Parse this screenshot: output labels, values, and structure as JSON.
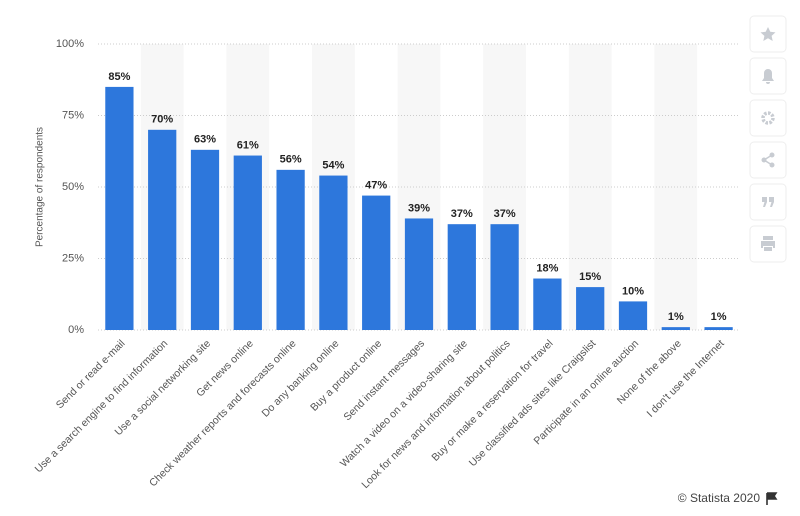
{
  "chart_data": {
    "type": "bar",
    "y_label": "Percentage of respondents",
    "categories": [
      "Send or read e-mail",
      "Use a search engine to find information",
      "Use a social networking site",
      "Get news online",
      "Check weather reports and forecasts online",
      "Do any banking online",
      "Buy a product online",
      "Send instant messages",
      "Watch a video on a video-sharing site",
      "Look for news and information about politics",
      "Buy or make a reservation for travel",
      "Use classified ads sites like Craigslist",
      "Participate in an online auction",
      "None of the above",
      "I don't use the Internet"
    ],
    "values": [
      85,
      70,
      63,
      61,
      56,
      54,
      47,
      39,
      37,
      37,
      18,
      15,
      10,
      1,
      1
    ],
    "value_labels": [
      "85%",
      "70%",
      "63%",
      "61%",
      "56%",
      "54%",
      "47%",
      "39%",
      "37%",
      "37%",
      "18%",
      "15%",
      "10%",
      "1%",
      "1%"
    ],
    "color": "#2d77dc",
    "ylim": [
      0,
      100
    ],
    "yticks": [
      {
        "value": 0,
        "label": "0%"
      },
      {
        "value": 25,
        "label": "25%"
      },
      {
        "value": 50,
        "label": "50%"
      },
      {
        "value": 75,
        "label": "75%"
      },
      {
        "value": 100,
        "label": "100%"
      }
    ],
    "grid": true,
    "credit": "© Statista 2020"
  }
}
